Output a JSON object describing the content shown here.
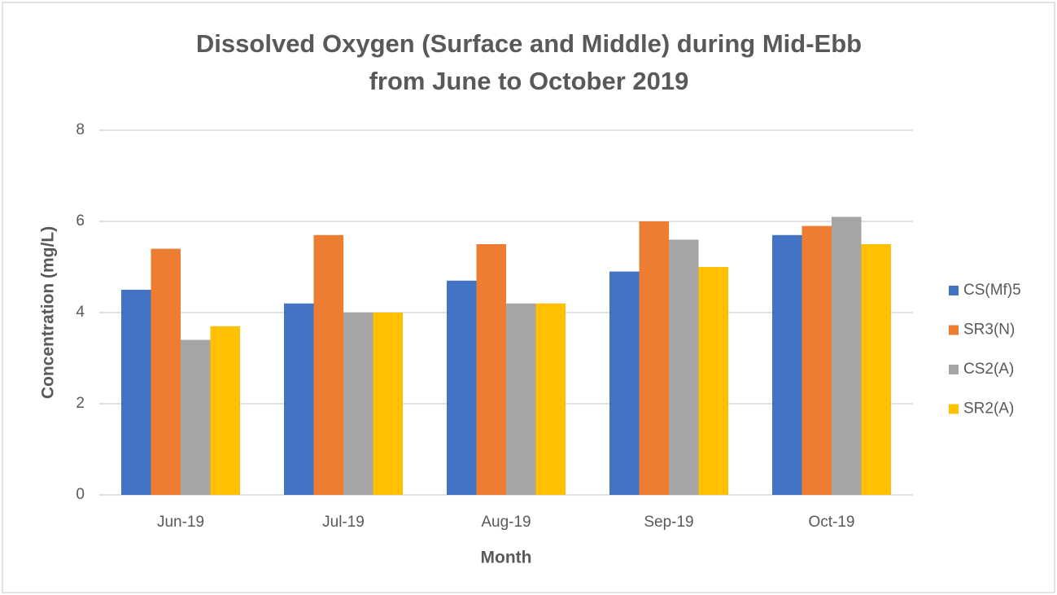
{
  "chart_data": {
    "type": "bar",
    "title": [
      "Dissolved Oxygen (Surface and Middle) during Mid-Ebb",
      "from June to October 2019"
    ],
    "x_label": "Month",
    "y_label": "Concentration (mg/L)",
    "categories": [
      "Jun-19",
      "Jul-19",
      "Aug-19",
      "Sep-19",
      "Oct-19"
    ],
    "series": [
      {
        "name": "CS(Mf)5",
        "color": "#4472c4",
        "values": [
          4.5,
          4.2,
          4.7,
          4.9,
          5.7
        ]
      },
      {
        "name": "SR3(N)",
        "color": "#ed7d31",
        "values": [
          5.4,
          5.7,
          5.5,
          6.0,
          5.9
        ]
      },
      {
        "name": "CS2(A)",
        "color": "#a5a5a5",
        "values": [
          3.4,
          4.0,
          4.2,
          5.6,
          6.1
        ]
      },
      {
        "name": "SR2(A)",
        "color": "#ffc000",
        "values": [
          3.7,
          4.0,
          4.2,
          5.0,
          5.5
        ]
      }
    ],
    "ylim": [
      0,
      8
    ],
    "yticks": [
      0,
      2,
      4,
      6,
      8
    ],
    "grid": true,
    "legend": "right"
  }
}
